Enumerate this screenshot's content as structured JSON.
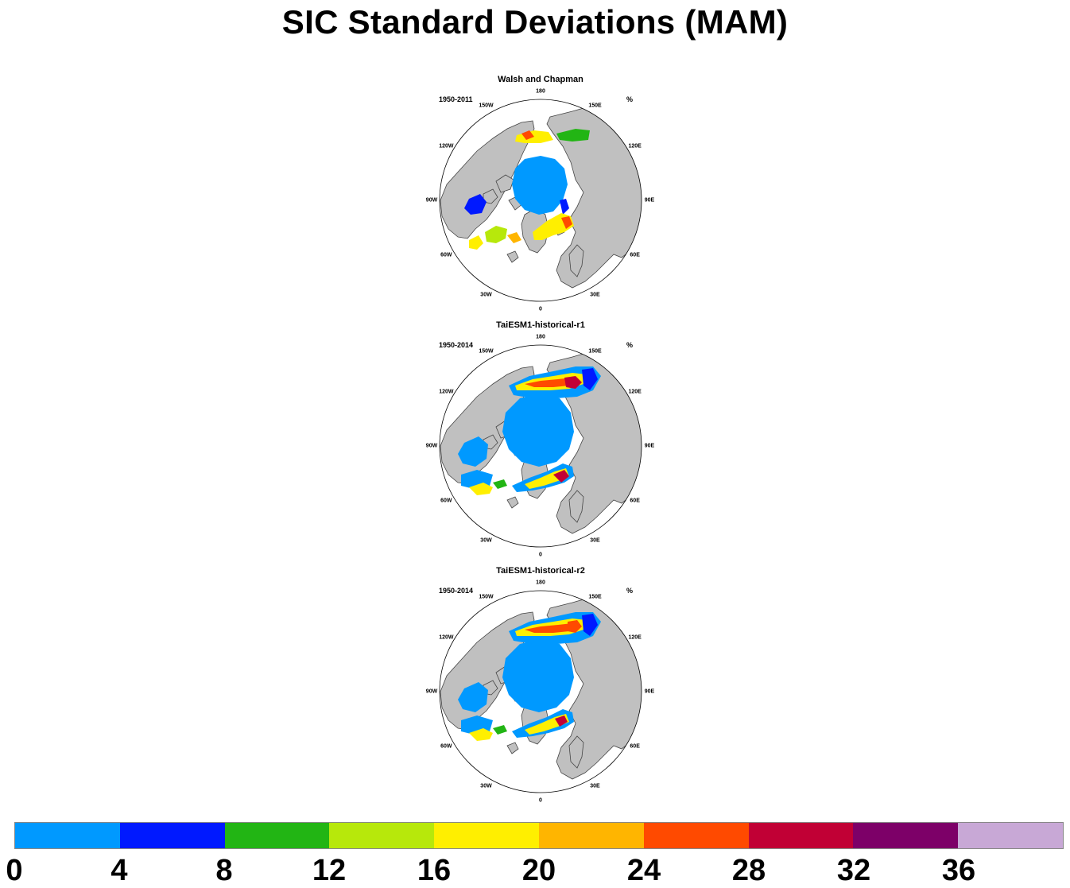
{
  "title": "SIC Standard Deviations (MAM)",
  "panels": [
    {
      "title": "Walsh and Chapman",
      "period": "1950-2011",
      "unit": "%"
    },
    {
      "title": "TaiESM1-historical-r1",
      "period": "1950-2014",
      "unit": "%"
    },
    {
      "title": "TaiESM1-historical-r2",
      "period": "1950-2014",
      "unit": "%"
    }
  ],
  "longitude_labels": [
    "180",
    "150E",
    "120E",
    "90E",
    "60E",
    "30E",
    "0",
    "30W",
    "60W",
    "90W",
    "120W",
    "150W"
  ],
  "colorbar": {
    "colors": [
      "#0099ff",
      "#0019ff",
      "#22b514",
      "#b7e80b",
      "#ffef00",
      "#ffb500",
      "#ff4a00",
      "#c10035",
      "#7d0068",
      "#c8a8d6"
    ],
    "tick_labels": [
      "0",
      "4",
      "8",
      "12",
      "16",
      "20",
      "24",
      "28",
      "32",
      "36"
    ]
  },
  "map_colors": {
    "land": "#c0c0c0",
    "ocean": "#ffffff",
    "coast": "#444444"
  }
}
